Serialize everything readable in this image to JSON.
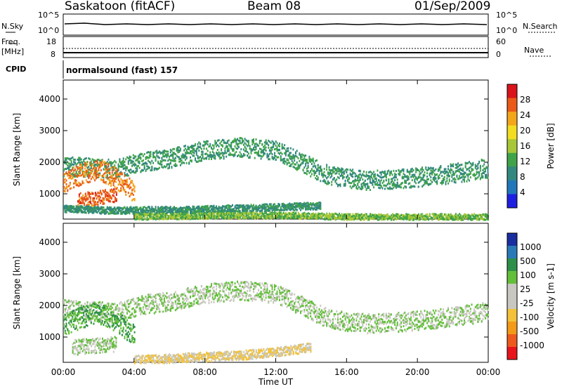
{
  "header": {
    "station": "Saskatoon (fitACF)",
    "beam": "Beam 08",
    "date": "01/Sep/2009"
  },
  "strip_labels": {
    "nsky": "N.Sky",
    "nsearch": "N.Search",
    "freq": "Freq.",
    "freq_unit": "[MHz]",
    "nave": "Nave",
    "cpid": "CPID",
    "cpid_value": "normalsound (fast) 157"
  },
  "strip_ticks": {
    "noise_top": "10^5",
    "noise_bottom": "10^0",
    "freq_top": "18",
    "freq_bottom": "8",
    "nave_top": "60",
    "nave_bottom": "0"
  },
  "colors": {
    "power": [
      "#1f1fe0",
      "#2277bb",
      "#33887f",
      "#3fa34a",
      "#a8c738",
      "#f2dd22",
      "#f4a61b",
      "#ea5a18",
      "#d9141a"
    ],
    "velocity": [
      "#e8141c",
      "#ee5a1e",
      "#f39a18",
      "#f3c23a",
      "#c8c8c0",
      "#c8c8c0",
      "#63bf3a",
      "#2e8f4a",
      "#2a7ab8",
      "#1a2ea0"
    ]
  },
  "chart_data": [
    {
      "type": "heatmap",
      "title": "Power [dB]",
      "xlabel": "Time UT",
      "ylabel": "Slant Range [km]",
      "xlim": [
        0,
        24
      ],
      "ylim": [
        200,
        4600
      ],
      "x_ticks": [
        "00:00",
        "04:00",
        "08:00",
        "12:00",
        "16:00",
        "20:00",
        "00:00"
      ],
      "y_ticks": [
        "1000",
        "2000",
        "3000",
        "4000"
      ],
      "colorbar_label": "Power [dB]",
      "colorbar_ticks": [
        "4",
        "8",
        "12",
        "16",
        "20",
        "24",
        "28"
      ],
      "bands": [
        {
          "t": [
            0,
            1.5,
            3,
            4.5,
            6,
            8,
            10,
            12,
            13.5,
            15,
            17,
            19,
            21,
            23,
            24
          ],
          "r": [
            1900,
            1850,
            1800,
            2050,
            2150,
            2400,
            2500,
            2400,
            2000,
            1600,
            1450,
            1500,
            1600,
            1750,
            1850
          ],
          "w": 380,
          "level": 10
        },
        {
          "t": [
            0,
            1,
            2,
            3,
            4
          ],
          "r": [
            1400,
            1650,
            1800,
            1500,
            1100
          ],
          "w": 420,
          "level": 26
        },
        {
          "t": [
            0.8,
            2,
            3
          ],
          "r": [
            820,
            900,
            1000
          ],
          "w": 280,
          "level": 28
        },
        {
          "t": [
            0,
            3,
            7,
            12,
            14.5
          ],
          "r": [
            550,
            500,
            520,
            600,
            650
          ],
          "w": 140,
          "level": 9
        },
        {
          "t": [
            4,
            6,
            8,
            10,
            12,
            14,
            16,
            20,
            24
          ],
          "r": [
            300,
            320,
            330,
            340,
            350,
            330,
            300,
            300,
            300
          ],
          "w": 120,
          "level": 14
        }
      ]
    },
    {
      "type": "heatmap",
      "title": "Velocity [m s^-1]",
      "xlabel": "Time UT",
      "ylabel": "Slant Range [km]",
      "xlim": [
        0,
        24
      ],
      "ylim": [
        200,
        4600
      ],
      "x_ticks": [
        "00:00",
        "04:00",
        "08:00",
        "12:00",
        "16:00",
        "20:00",
        "00:00"
      ],
      "y_ticks": [
        "1000",
        "2000",
        "3000",
        "4000"
      ],
      "colorbar_label": "Velocity [m s-1]",
      "colorbar_ticks": [
        "1000",
        "500",
        "100",
        "25",
        "-25",
        "-100",
        "-500",
        "-1000"
      ],
      "bands": [
        {
          "t": [
            0,
            1.5,
            3,
            4.5,
            6,
            8,
            10,
            12,
            13.5,
            15,
            17,
            19,
            21,
            23,
            24
          ],
          "r": [
            1900,
            1850,
            1800,
            2050,
            2150,
            2400,
            2500,
            2400,
            2000,
            1600,
            1450,
            1500,
            1600,
            1750,
            1850
          ],
          "w": 380,
          "level": 25
        },
        {
          "t": [
            0,
            1,
            2,
            3,
            4
          ],
          "r": [
            1400,
            1650,
            1800,
            1500,
            1100
          ],
          "w": 420,
          "level": 100
        },
        {
          "t": [
            0.5,
            1.5,
            3
          ],
          "r": [
            700,
            750,
            800
          ],
          "w": 300,
          "level": 25
        },
        {
          "t": [
            4,
            6,
            8,
            10,
            12,
            14
          ],
          "r": [
            300,
            350,
            400,
            450,
            550,
            700
          ],
          "w": 180,
          "level": -100
        }
      ]
    }
  ]
}
